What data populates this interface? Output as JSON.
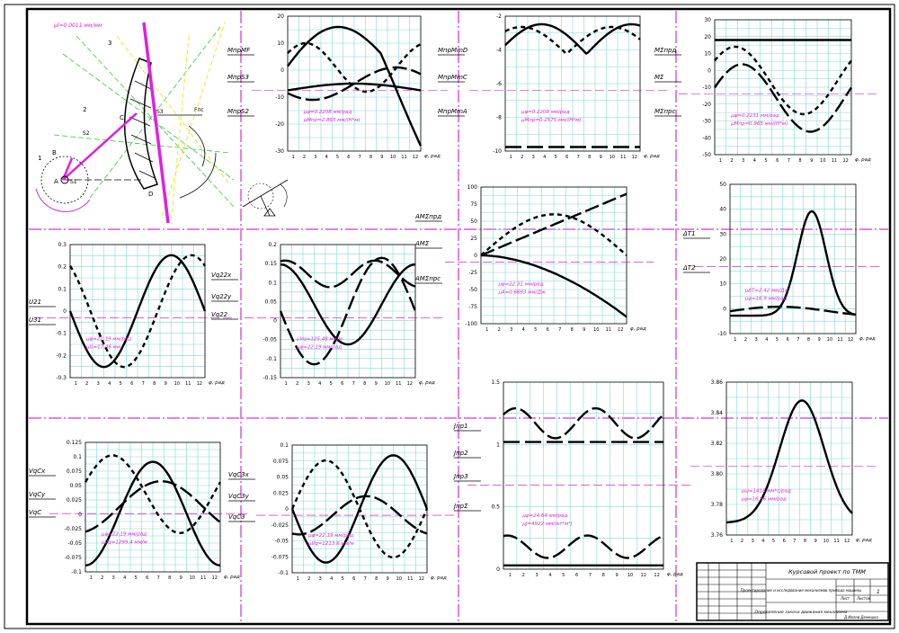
{
  "title_block": {
    "project": "Курсовой проект по ТММ",
    "description": "Проектирование и исследование механизмов привода машины",
    "subtitle": "Определение закона движения механизма",
    "sheet_label": "Лист",
    "sheets_label": "Листов",
    "sheet_number": "1",
    "student": "Д.Ивлев.Демешко"
  },
  "mechanism": {
    "scale_label": "μl=0.0011 мм/мм",
    "labels": [
      "1",
      "2",
      "3",
      "A",
      "B",
      "C",
      "D",
      "S1",
      "S2",
      "S3",
      "Fпс"
    ]
  },
  "axis_units": {
    "phi": "φ, рад",
    "phi_short": "φ,рад"
  },
  "charts": [
    {
      "id": "moments",
      "side_labels": [
        "МпрМF",
        "МпрS3",
        "МпрS2"
      ],
      "y_ticks": [
        "20",
        "10",
        "0",
        "-10",
        "-20",
        "-30"
      ],
      "x_ticks": [
        "1",
        "2",
        "3",
        "4",
        "5",
        "6",
        "7",
        "8",
        "9",
        "10",
        "11",
        "12"
      ],
      "xlabel": "φ, рад",
      "notes": [
        "μφ=0.2208 мм/рад",
        "μМпр=2.895 мм/(Н*м)"
      ]
    },
    {
      "id": "moments2",
      "side_labels": [
        "МпрМmD",
        "МпрМmC",
        "МпрМmA"
      ],
      "y_ticks": [
        "-2",
        "-4",
        "-6",
        "-8",
        "-10"
      ],
      "x_ticks": [
        "1",
        "2",
        "3",
        "4",
        "5",
        "6",
        "7",
        "8",
        "9",
        "10",
        "11",
        "12"
      ],
      "xlabel": "φ, рад",
      "notes": [
        "μφ=0.2208 мм/рад",
        "μМпр=0.2575 мм/(Н*м)"
      ]
    },
    {
      "id": "sum_moments",
      "side_labels": [
        "МΣпрд",
        "МΣ",
        "МΣпрс"
      ],
      "y_ticks": [
        "30",
        "20",
        "10",
        "0",
        "-10",
        "-20",
        "-30",
        "-40",
        "-50"
      ],
      "x_ticks": [
        "1",
        "2",
        "3",
        "4",
        "5",
        "6",
        "7",
        "8",
        "9",
        "10",
        "11",
        "12"
      ],
      "xlabel": "φ, рад",
      "notes": [
        "μφ=0.2231 мм/рад",
        "μМпр=0.965 мм/(Н*м)"
      ]
    },
    {
      "id": "u",
      "side_labels": [
        "U21",
        "U31"
      ],
      "y_ticks": [
        "0.3",
        "0.2",
        "0.1",
        "0",
        "-0.1",
        "-0.2",
        "-0.3"
      ],
      "x_ticks": [
        "1",
        "2",
        "3",
        "4",
        "5",
        "6",
        "7",
        "8",
        "9",
        "10",
        "11",
        "12"
      ],
      "xlabel": "φ, рад",
      "notes": [
        "μφ=22.19 мм/рад",
        "μU=17.46 мм"
      ]
    },
    {
      "id": "vq22",
      "side_labels": [
        "Vq22x",
        "Vq22y",
        "Vq22"
      ],
      "y_ticks": [
        "0.2",
        "0.15",
        "0.1",
        "0.05",
        "0",
        "-0.05",
        "-0.1",
        "-0.15"
      ],
      "x_ticks": [
        "1",
        "2",
        "3",
        "4",
        "5",
        "6",
        "7",
        "8",
        "9",
        "10",
        "11",
        "12"
      ],
      "xlabel": "φ, рад",
      "notes": [
        "μVq=125.48 мм/м",
        "μφ=22.19 мм/рад"
      ]
    },
    {
      "id": "energy",
      "side_labels": [
        "АМΣпрд",
        "АМΣ",
        "АМΣпрс"
      ],
      "y_ticks": [
        "100",
        "75",
        "50",
        "25",
        "0",
        "-25",
        "-50",
        "-75",
        "-100"
      ],
      "x_ticks": [
        "1",
        "2",
        "3",
        "4",
        "5",
        "6",
        "7",
        "8",
        "9",
        "10",
        "11",
        "12"
      ],
      "xlabel": "φ, рад",
      "notes": [
        "μφ=22.31 мм/рад",
        "μA=0.6693 мм/Дж"
      ]
    },
    {
      "id": "dT",
      "side_labels": [
        "ΔТ1",
        "ΔТ2"
      ],
      "y_ticks": [
        "50",
        "40",
        "30",
        "20",
        "10",
        "0",
        "-10"
      ],
      "x_ticks": [
        "1",
        "2",
        "3",
        "4",
        "5",
        "6",
        "7",
        "8",
        "9",
        "10",
        "11",
        "12"
      ],
      "xlabel": "φ, рад",
      "notes": [
        "μΔТ=2.42 мм/Дж",
        "μφ=16.9 мм/рад"
      ]
    },
    {
      "id": "vc2",
      "side_labels": [
        "VqCx",
        "VqCy",
        "VqC"
      ],
      "y_ticks": [
        "0.125",
        "0.1",
        "0.075",
        "0.05",
        "0.025",
        "0",
        "-0.025",
        "-0.05",
        "-0.075",
        "-0.1"
      ],
      "x_ticks": [
        "1",
        "2",
        "3",
        "4",
        "5",
        "6",
        "7",
        "8",
        "9",
        "10",
        "11",
        "12"
      ],
      "xlabel": "φ, рад",
      "notes": [
        "μφ=22.19 мм/рад",
        "μVq=1299.4 мм/м"
      ]
    },
    {
      "id": "vc3",
      "side_labels": [
        "VqC3x",
        "VqC3y",
        "VqC3"
      ],
      "y_ticks": [
        "0.1",
        "0.075",
        "0.05",
        "0.025",
        "0",
        "-0.025",
        "-0.05",
        "-0.075",
        "-0.1"
      ],
      "x_ticks": [
        "1",
        "2",
        "3",
        "4",
        "5",
        "6",
        "7",
        "8",
        "9",
        "10",
        "11",
        "12"
      ],
      "xlabel": "φ, рад",
      "notes": [
        "μφ=22.19 мм/рад",
        "μVq=1213.6 мм/м"
      ]
    },
    {
      "id": "jpr",
      "side_labels": [
        "Jпр1",
        "Jпр2",
        "Jпр3",
        "JпрΣ"
      ],
      "y_ticks": [
        "1.5",
        "1",
        "0.5",
        "0"
      ],
      "x_ticks": [
        "1",
        "2",
        "3",
        "4",
        "5",
        "6",
        "7",
        "8",
        "9",
        "10",
        "11",
        "12"
      ],
      "xlabel": "φ, рад",
      "notes": [
        "μφ=24.64 мм/рад",
        "μJ=4922 мм/(кг*м²)"
      ]
    },
    {
      "id": "omega",
      "side_labels": [],
      "y_ticks": [
        "3.86",
        "3.84",
        "3.82",
        "3.80",
        "3.78",
        "3.76"
      ],
      "x_ticks": [
        "1",
        "2",
        "3",
        "4",
        "5",
        "6",
        "7",
        "8",
        "9",
        "10",
        "11",
        "12"
      ],
      "xlabel": "φ, рад",
      "notes": [
        "μω=1418 мм*с/рад",
        "μφ=16.96 мм/рад"
      ]
    }
  ],
  "colors": {
    "grid": "#80d8d8",
    "axis_dash": "#cc00cc",
    "curve": "#000000",
    "magenta": "#e020e0",
    "green": "#33cc33",
    "yellow": "#e8e800"
  }
}
